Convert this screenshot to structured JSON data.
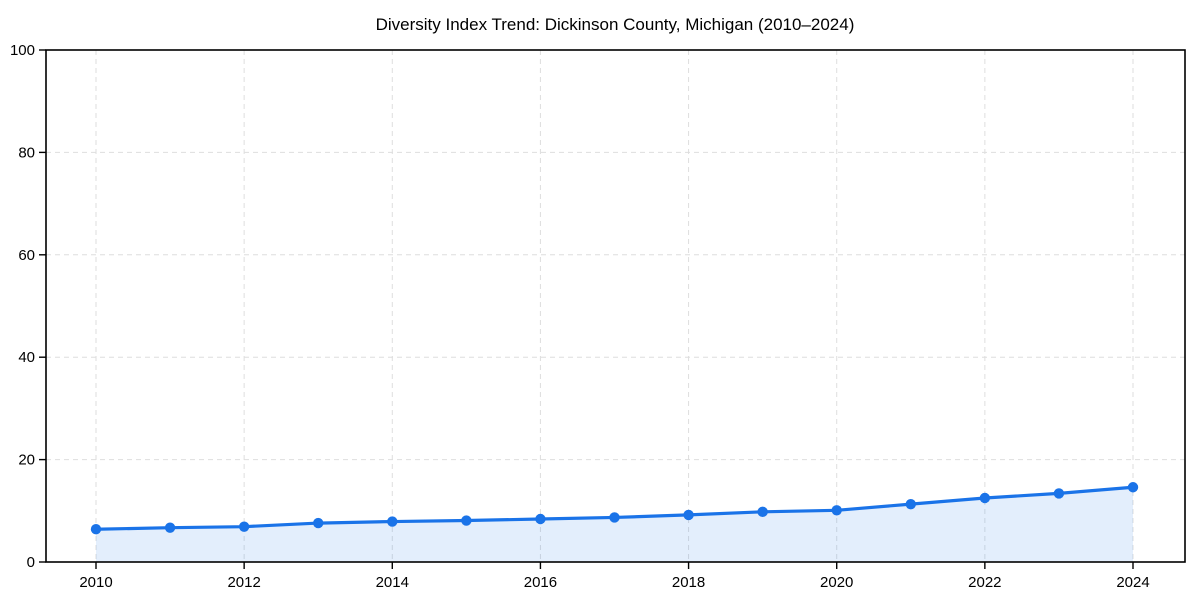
{
  "chart_data": {
    "type": "line",
    "title": "Diversity Index Trend: Dickinson County, Michigan (2010–2024)",
    "x": [
      2010,
      2011,
      2012,
      2013,
      2014,
      2015,
      2016,
      2017,
      2018,
      2019,
      2020,
      2021,
      2022,
      2023,
      2024
    ],
    "series": [
      {
        "name": "Diversity Index",
        "values": [
          6.4,
          6.7,
          6.9,
          7.6,
          7.9,
          8.1,
          8.4,
          8.7,
          9.2,
          9.8,
          10.1,
          11.3,
          12.5,
          13.4,
          14.6
        ]
      }
    ],
    "xlabel": "",
    "ylabel": "",
    "ylim": [
      0,
      100
    ],
    "xlim_years": [
      2010,
      2024
    ],
    "yticks": [
      0,
      20,
      40,
      60,
      80,
      100
    ],
    "ytick_labels": [
      "0",
      "20",
      "40",
      "60",
      "80",
      "100"
    ],
    "xticks": [
      2010,
      2012,
      2014,
      2016,
      2018,
      2020,
      2022,
      2024
    ],
    "xtick_labels": [
      "2010",
      "2012",
      "2014",
      "2016",
      "2018",
      "2020",
      "2022",
      "2024"
    ],
    "grid": true,
    "grid_style": "dashed",
    "legend": false,
    "marker": "circle",
    "colors": {
      "line": "#1a73e8",
      "fill": "#1a73e8",
      "fill_opacity": 0.12,
      "grid": "#dedede",
      "spine": "#000000",
      "text": "#000000"
    }
  }
}
